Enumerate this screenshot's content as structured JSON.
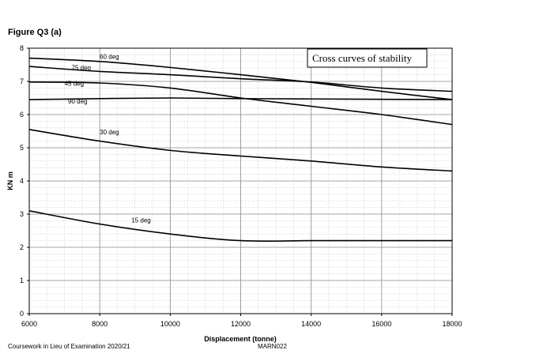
{
  "figure_title": "Figure Q3 (a)",
  "footer": {
    "left": "Coursework in Lieu of Examination 2020/21",
    "right": "MARN022"
  },
  "chart_data": {
    "type": "line",
    "title": "Cross curves of stability",
    "xlabel": "Displacement (tonne)",
    "ylabel": "KN m",
    "xlim": [
      6000,
      18000
    ],
    "ylim": [
      0,
      8
    ],
    "x_ticks": [
      6000,
      8000,
      10000,
      12000,
      14000,
      16000,
      18000
    ],
    "y_ticks": [
      0,
      1,
      2,
      3,
      4,
      5,
      6,
      7,
      8
    ],
    "grid": true,
    "minor_grid": true,
    "series": [
      {
        "name": "60 deg",
        "x": [
          6000,
          8000,
          10000,
          12000,
          14000,
          16000,
          18000
        ],
        "values": [
          7.7,
          7.6,
          7.42,
          7.2,
          6.97,
          6.7,
          6.45
        ]
      },
      {
        "name": "75 deg",
        "x": [
          6000,
          8000,
          10000,
          12000,
          14000,
          16000,
          18000
        ],
        "values": [
          7.45,
          7.3,
          7.2,
          7.08,
          6.98,
          6.8,
          6.7
        ]
      },
      {
        "name": "45 deg",
        "x": [
          6000,
          8000,
          10000,
          12000,
          14000,
          16000,
          18000
        ],
        "values": [
          6.98,
          6.95,
          6.8,
          6.5,
          6.25,
          6.0,
          5.7
        ]
      },
      {
        "name": "90 deg",
        "x": [
          6000,
          8000,
          10000,
          12000,
          14000,
          16000,
          18000
        ],
        "values": [
          6.45,
          6.48,
          6.5,
          6.48,
          6.47,
          6.46,
          6.45
        ]
      },
      {
        "name": "30 deg",
        "x": [
          6000,
          8000,
          10000,
          12000,
          14000,
          16000,
          18000
        ],
        "values": [
          5.55,
          5.2,
          4.92,
          4.75,
          4.6,
          4.42,
          4.3
        ]
      },
      {
        "name": "15 deg",
        "x": [
          6000,
          8000,
          10000,
          12000,
          14000,
          16000,
          18000
        ],
        "values": [
          3.1,
          2.7,
          2.4,
          2.2,
          2.2,
          2.2,
          2.2
        ]
      }
    ]
  }
}
